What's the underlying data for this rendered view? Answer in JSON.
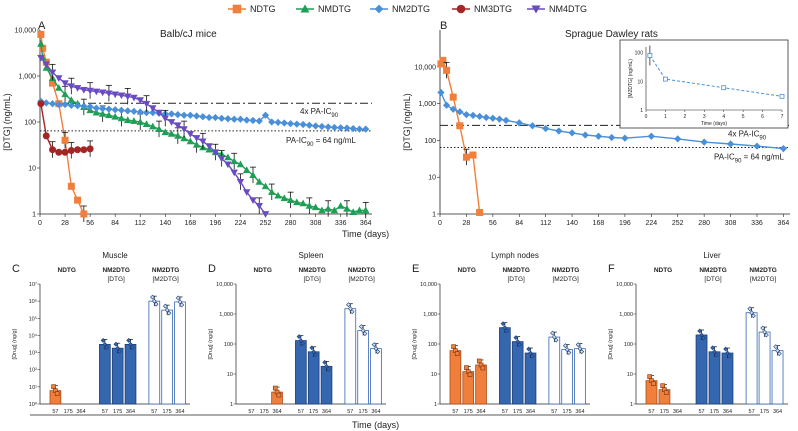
{
  "legend": [
    {
      "name": "NDTG",
      "color": "#f07f3c",
      "marker": "square"
    },
    {
      "name": "NMDTG",
      "color": "#1f9e55",
      "marker": "triangle"
    },
    {
      "name": "NM2DTG",
      "color": "#4a90d9",
      "marker": "diamond"
    },
    {
      "name": "NM3DTG",
      "color": "#a52525",
      "marker": "circle"
    },
    {
      "name": "NM4DTG",
      "color": "#6a4cc2",
      "marker": "tri-down"
    }
  ],
  "colors": {
    "orange": "#f07f3c",
    "green": "#1f9e55",
    "blue": "#4a90d9",
    "darkblue": "#3467b0",
    "red": "#a52525",
    "purple": "#6a4cc2"
  },
  "xlabel_shared": "Time (days)",
  "xlabel_bottom": "Time (days)",
  "chart_data": [
    {
      "type": "line",
      "panel": "A",
      "title": "Balb/cJ mice",
      "ylabel": "[DTG] (ng/mL)",
      "xlim": [
        0,
        371
      ],
      "ylim": [
        1,
        10000
      ],
      "yscale": "log",
      "xticks": [
        0,
        28,
        56,
        84,
        112,
        140,
        168,
        196,
        224,
        252,
        280,
        308,
        336,
        364
      ],
      "yticks": [
        1,
        10,
        100,
        1000,
        10000
      ],
      "ytick_labels": [
        "1",
        "10",
        "100",
        "1,000",
        "10,000"
      ],
      "ref_lines": [
        {
          "y": 256,
          "label": "4x PA-IC90",
          "style": "dashdot"
        },
        {
          "y": 64,
          "label": "PA-IC90 = 64 ng/mL",
          "style": "dotted"
        }
      ],
      "series": [
        {
          "name": "NDTG",
          "x": [
            1,
            3,
            7,
            14,
            21,
            28,
            35,
            42,
            49
          ],
          "y": [
            8000,
            4000,
            2000,
            700,
            250,
            40,
            4,
            2,
            1
          ]
        },
        {
          "name": "NMDTG",
          "x": [
            1,
            3,
            7,
            14,
            21,
            28,
            35,
            42,
            49,
            56,
            63,
            70,
            77,
            84,
            91,
            98,
            105,
            112,
            119,
            126,
            133,
            140,
            147,
            154,
            161,
            168,
            175,
            182,
            189,
            196,
            203,
            210,
            217,
            224,
            231,
            238,
            245,
            252,
            259,
            266,
            273,
            280,
            287,
            294,
            301,
            308,
            315,
            322,
            329,
            336,
            343,
            350,
            357,
            364
          ],
          "y": [
            5000,
            2500,
            1500,
            900,
            550,
            400,
            300,
            250,
            210,
            180,
            160,
            150,
            140,
            130,
            120,
            110,
            105,
            100,
            90,
            80,
            70,
            60,
            55,
            50,
            44,
            38,
            32,
            28,
            25,
            22,
            20,
            17,
            14,
            12,
            9,
            7,
            5,
            4,
            3,
            2.5,
            2.2,
            2,
            1.8,
            1.7,
            1.5,
            1.4,
            1.2,
            1.3,
            1.2,
            1.5,
            1.3,
            1.1,
            1.2,
            1.2
          ]
        },
        {
          "name": "NM2DTG",
          "x": [
            1,
            7,
            14,
            21,
            28,
            35,
            42,
            49,
            56,
            63,
            70,
            77,
            84,
            91,
            98,
            105,
            112,
            119,
            126,
            133,
            140,
            147,
            154,
            161,
            168,
            175,
            182,
            189,
            196,
            203,
            210,
            217,
            224,
            231,
            238,
            245,
            252,
            259,
            266,
            273,
            280,
            287,
            294,
            301,
            308,
            315,
            322,
            329,
            336,
            343,
            350,
            357,
            364
          ],
          "y": [
            280,
            260,
            250,
            240,
            240,
            230,
            225,
            220,
            215,
            200,
            195,
            190,
            185,
            180,
            175,
            170,
            165,
            160,
            160,
            155,
            150,
            150,
            145,
            140,
            140,
            135,
            130,
            125,
            125,
            120,
            118,
            115,
            115,
            110,
            108,
            105,
            140,
            100,
            98,
            95,
            92,
            90,
            88,
            85,
            82,
            80,
            78,
            76,
            75,
            74,
            72,
            70,
            70
          ]
        },
        {
          "name": "NM3DTG",
          "x": [
            1,
            7,
            14,
            21,
            28,
            35,
            42,
            49,
            56
          ],
          "y": [
            250,
            50,
            25,
            22,
            22,
            24,
            25,
            25,
            26
          ]
        },
        {
          "name": "NM4DTG",
          "x": [
            1,
            7,
            14,
            21,
            28,
            35,
            42,
            49,
            56,
            63,
            70,
            77,
            84,
            91,
            98,
            105,
            112,
            119,
            126,
            133,
            140,
            147,
            154,
            161,
            168,
            175,
            182,
            189,
            196,
            203,
            210,
            217,
            224,
            231,
            238,
            245,
            252
          ],
          "y": [
            2500,
            1800,
            1200,
            900,
            700,
            600,
            550,
            500,
            480,
            460,
            440,
            420,
            400,
            380,
            360,
            340,
            300,
            250,
            200,
            160,
            120,
            100,
            85,
            70,
            55,
            45,
            38,
            30,
            22,
            16,
            12,
            8,
            5,
            3,
            2,
            1.5,
            1
          ]
        }
      ]
    },
    {
      "type": "line",
      "panel": "B",
      "title": "Sprague Dawley rats",
      "ylabel": "[DTG] (ng/mL)",
      "xlim": [
        0,
        371
      ],
      "ylim": [
        1,
        100000
      ],
      "yscale": "log",
      "xticks": [
        0,
        28,
        56,
        84,
        112,
        140,
        168,
        196,
        224,
        252,
        280,
        308,
        336,
        364
      ],
      "yticks": [
        1,
        10,
        100,
        1000,
        10000
      ],
      "ytick_labels": [
        "1",
        "10",
        "100",
        "1,000",
        "10,000"
      ],
      "ref_lines": [
        {
          "y": 256,
          "label": "4x PA-IC90",
          "style": "dashdot"
        },
        {
          "y": 64,
          "label": "PA-IC90 = 64 ng/mL",
          "style": "dotted"
        }
      ],
      "series": [
        {
          "name": "NDTG",
          "x": [
            1,
            3,
            7,
            14,
            21,
            28,
            35,
            42
          ],
          "y": [
            12000,
            15000,
            8000,
            1500,
            250,
            35,
            40,
            1.1
          ]
        },
        {
          "name": "NM2DTG",
          "x": [
            1,
            7,
            14,
            21,
            28,
            35,
            42,
            49,
            56,
            63,
            70,
            84,
            98,
            112,
            126,
            140,
            154,
            168,
            182,
            196,
            224,
            252,
            280,
            308,
            336,
            364
          ],
          "y": [
            2000,
            900,
            700,
            600,
            500,
            480,
            450,
            420,
            400,
            380,
            350,
            300,
            250,
            210,
            180,
            160,
            140,
            130,
            120,
            115,
            130,
            110,
            90,
            80,
            70,
            60
          ]
        }
      ],
      "inset": {
        "ylabel": "[M2DTG] (ng/mL)",
        "xlabel": "Time (days)",
        "xticks": [
          0,
          1,
          2,
          3,
          4,
          5,
          6,
          7
        ],
        "yticks": [
          "1",
          "10",
          "100"
        ],
        "x": [
          0.2,
          1,
          4,
          7
        ],
        "y": [
          80,
          12,
          6,
          3
        ]
      }
    },
    {
      "type": "bar",
      "panel": "C",
      "title": "Muscle",
      "ylabel": "[Drug] (ng/g)",
      "yscale": "log",
      "ylim": [
        1,
        10000000
      ],
      "ytick_labels": [
        "10⁰",
        "10¹",
        "10²",
        "10³",
        "10⁴",
        "10⁵",
        "10⁶",
        "10⁷"
      ],
      "groups": [
        {
          "label": "NDTG",
          "sub": "",
          "categories": [
            "57",
            "175",
            "364"
          ],
          "values": [
            6,
            null,
            null
          ],
          "style": "orange"
        },
        {
          "label": "NM2DTG",
          "sub": "[DTG]",
          "categories": [
            "57",
            "175",
            "364"
          ],
          "values": [
            3000,
            1800,
            3000
          ],
          "style": "blue"
        },
        {
          "label": "NM2DTG",
          "sub": "[M2DTG]",
          "categories": [
            "57",
            "175",
            "364"
          ],
          "values": [
            1000000,
            300000,
            900000
          ],
          "style": "open"
        }
      ]
    },
    {
      "type": "bar",
      "panel": "D",
      "title": "Spleen",
      "ylabel": "[Drug] (ng/g)",
      "yscale": "log",
      "ylim": [
        1,
        10000
      ],
      "ytick_labels": [
        "1",
        "10",
        "100",
        "1,000",
        "10,000"
      ],
      "groups": [
        {
          "label": "NDTG",
          "sub": "",
          "categories": [
            "57",
            "175",
            "364"
          ],
          "values": [
            null,
            null,
            2.5
          ],
          "style": "orange"
        },
        {
          "label": "NM2DTG",
          "sub": "[DTG]",
          "categories": [
            "57",
            "175",
            "364"
          ],
          "values": [
            130,
            55,
            18
          ],
          "style": "blue"
        },
        {
          "label": "NM2DTG",
          "sub": "[M2DTG]",
          "categories": [
            "57",
            "175",
            "364"
          ],
          "values": [
            1500,
            280,
            70
          ],
          "style": "open"
        }
      ]
    },
    {
      "type": "bar",
      "panel": "E",
      "title": "Lymph nodes",
      "ylabel": "[Drug] (ng/g)",
      "yscale": "log",
      "ylim": [
        1,
        10000
      ],
      "ytick_labels": [
        "1",
        "10",
        "100",
        "1,000",
        "10,000"
      ],
      "groups": [
        {
          "label": "NDTG",
          "sub": "",
          "categories": [
            "57",
            "175",
            "364"
          ],
          "values": [
            60,
            12,
            20
          ],
          "style": "orange"
        },
        {
          "label": "NM2DTG",
          "sub": "[DTG]",
          "categories": [
            "57",
            "175",
            "364"
          ],
          "values": [
            350,
            120,
            50
          ],
          "style": "blue"
        },
        {
          "label": "NM2DTG",
          "sub": "[M2DTG]",
          "categories": [
            "57",
            "175",
            "364"
          ],
          "values": [
            170,
            65,
            70
          ],
          "style": "open"
        }
      ]
    },
    {
      "type": "bar",
      "panel": "F",
      "title": "Liver",
      "ylabel": "[Drug] (ng/g)",
      "yscale": "log",
      "ylim": [
        1,
        10000
      ],
      "ytick_labels": [
        "1",
        "10",
        "100",
        "1,000",
        "10,000"
      ],
      "groups": [
        {
          "label": "NDTG",
          "sub": "",
          "categories": [
            "57",
            "175",
            "364"
          ],
          "values": [
            6,
            3,
            null
          ],
          "style": "orange"
        },
        {
          "label": "NM2DTG",
          "sub": "[DTG]",
          "categories": [
            "57",
            "175",
            "364"
          ],
          "values": [
            200,
            55,
            50
          ],
          "style": "blue"
        },
        {
          "label": "NM2DTG",
          "sub": "[M2DTG]",
          "categories": [
            "57",
            "175",
            "364"
          ],
          "values": [
            1100,
            250,
            60
          ],
          "style": "open"
        }
      ]
    }
  ]
}
